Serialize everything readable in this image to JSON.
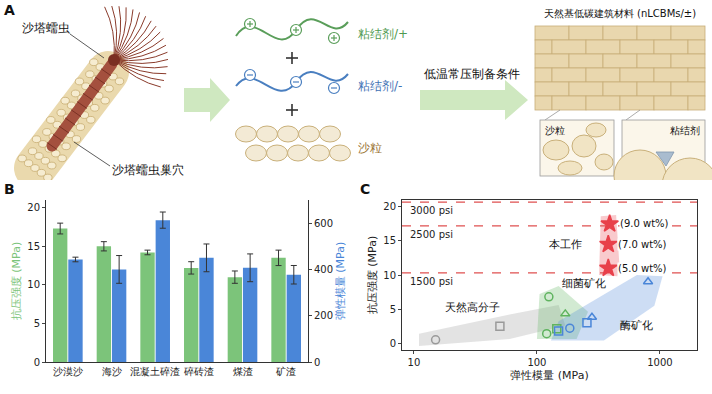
{
  "diagram": {
    "panel_label": "A",
    "worm": "沙塔蠕虫",
    "nest": "沙塔蠕虫巢穴",
    "binder_pos": "粘结剂/+",
    "binder_neg": "粘结剂/-",
    "sand": "沙粒",
    "process": "低温常压制备条件",
    "product": "天然基低碳建筑材料 (nLCBMs/±)",
    "inset_sand": "沙粒",
    "inset_binder": "粘结剂"
  },
  "chart_data": [
    {
      "panel_label": "B",
      "type": "bar",
      "categories": [
        "沙漠沙",
        "海沙",
        "混凝土碎渣",
        "碎砖渣",
        "煤渣",
        "矿渣"
      ],
      "y_label": "抗压强度 (MPa)",
      "y2_label": "弹性模量 (MPa)",
      "ylim": [
        0,
        21
      ],
      "yticks": [
        0,
        5,
        10,
        15,
        20
      ],
      "y2lim": [
        0,
        700
      ],
      "y2ticks": [
        0,
        200,
        400,
        600
      ],
      "grid": false,
      "series": [
        {
          "color": "#7cc47a",
          "values": [
            17.3,
            15.0,
            14.2,
            12.2,
            11.0,
            13.5
          ],
          "errors": [
            0.7,
            0.6,
            0.3,
            0.8,
            0.8,
            1.0
          ]
        },
        {
          "color": "#4a86d8",
          "axis": "y2",
          "values": [
            443,
            400,
            613,
            450,
            407,
            377
          ],
          "errors": [
            10,
            60,
            35,
            60,
            60,
            40
          ]
        }
      ]
    },
    {
      "panel_label": "C",
      "type": "scatter",
      "log": "x",
      "grid": false,
      "x_label": "弹性模量 (MPa)",
      "y_label": "抗压强度 (MPa)",
      "xlim": [
        8,
        2000
      ],
      "xticks": [
        10,
        100,
        1000
      ],
      "ylim": [
        -1,
        21
      ],
      "yticks": [
        0,
        5,
        10,
        15,
        20
      ],
      "reference_lines": [
        {
          "value": 20.7,
          "label": "3000 psi",
          "color": "#e05050",
          "line_style": "dash"
        },
        {
          "value": 17.2,
          "label": "2500 psi",
          "color": "#e05050",
          "line_style": "dash"
        },
        {
          "value": 10.3,
          "label": "1500 psi",
          "color": "#e05050",
          "line_style": "dash"
        }
      ],
      "series": [
        {
          "name": "天然高分子",
          "color": "#9a9a9a",
          "marker": [
            "circle",
            "square"
          ],
          "x": [
            15,
            50
          ],
          "y": [
            0.5,
            2.5
          ],
          "region_x": [
            11,
            11,
            60,
            150,
            170,
            60
          ],
          "region_y": [
            -0.4,
            1.4,
            4.2,
            5.6,
            2.6,
            0.6
          ],
          "label_x": 30,
          "label_y": 5.2
        },
        {
          "name": "细菌矿化",
          "color": "#5fb35f",
          "marker": [
            "circle",
            "triangle-up",
            "circle",
            "square"
          ],
          "x": [
            125,
            170,
            120,
            145
          ],
          "y": [
            6.8,
            4.3,
            1.4,
            2.1
          ],
          "region_x": [
            100,
            105,
            150,
            260,
            210
          ],
          "region_y": [
            0.6,
            7.2,
            8.4,
            4.6,
            0.6
          ],
          "label_x": 240,
          "label_y": 8.8
        },
        {
          "name": "酶矿化",
          "color": "#4a86d8",
          "marker": [
            "square",
            "circle",
            "square",
            "triangle-up",
            "triangle-up"
          ],
          "x": [
            150,
            185,
            255,
            280,
            800
          ],
          "y": [
            1.8,
            2.2,
            3.0,
            3.8,
            9.0
          ],
          "region_x": [
            130,
            150,
            650,
            1050,
            900,
            350
          ],
          "region_y": [
            0.4,
            3.2,
            10.0,
            9.8,
            5.5,
            0.4
          ],
          "label_x": 650,
          "label_y": 2.6
        },
        {
          "name": "本工作",
          "color": "#e8404a",
          "marker": [
            "star",
            "star",
            "star"
          ],
          "x": [
            380,
            380,
            390
          ],
          "y": [
            11.0,
            14.5,
            17.5
          ],
          "point_labels": [
            "(5.0 wt%)",
            "(7.0 wt%)",
            "(9.0 wt%)"
          ],
          "region_x": [
            320,
            330,
            440,
            470,
            450
          ],
          "region_y": [
            10.0,
            18.6,
            18.8,
            11.0,
            9.8
          ],
          "label_x": 170,
          "label_y": 14.5
        }
      ]
    }
  ]
}
